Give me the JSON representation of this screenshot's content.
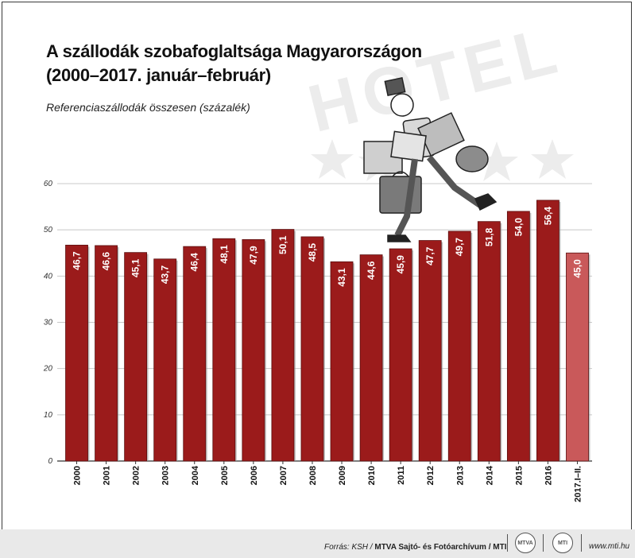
{
  "header": {
    "title_line1": "A szállodák szobafoglaltsága Magyarországon",
    "title_line2": "(2000–2017. január–február)",
    "subtitle": "Referenciaszállodák összesen (százalék)"
  },
  "watermark": {
    "text": "HOTEL"
  },
  "footer": {
    "source_prefix": "Forrás: KSH / ",
    "source_agency": "MTVA Sajtó- és Fotóarchívum / MTI",
    "logo1": "MTVA",
    "logo2": "MTI",
    "website": "www.mti.hu"
  },
  "colors": {
    "bar": "#9b1b1b",
    "bar_highlight": "#c9595a",
    "grid": "#c8c8c8"
  },
  "chart_data": {
    "type": "bar",
    "title": "A szállodák szobafoglaltsága Magyarországon (2000–2017. január–február)",
    "subtitle": "Referenciaszállodák összesen (százalék)",
    "categories": [
      "2000",
      "2001",
      "2002",
      "2003",
      "2004",
      "2005",
      "2006",
      "2007",
      "2008",
      "2009",
      "2010",
      "2011",
      "2012",
      "2013",
      "2014",
      "2015",
      "2016",
      "2017.I–II."
    ],
    "values": [
      46.7,
      46.6,
      45.1,
      43.7,
      46.4,
      48.1,
      47.9,
      50.1,
      48.5,
      43.1,
      44.6,
      45.9,
      47.7,
      49.7,
      51.8,
      54.0,
      56.4,
      45.0
    ],
    "value_labels": [
      "46,7",
      "46,6",
      "45,1",
      "43,7",
      "46,4",
      "48,1",
      "47,9",
      "50,1",
      "48,5",
      "43,1",
      "44,6",
      "45,9",
      "47,7",
      "49,7",
      "51,8",
      "54,0",
      "56,4",
      "45,0"
    ],
    "yticks": [
      0,
      10,
      20,
      30,
      40,
      50,
      60
    ],
    "ylim": [
      0,
      60
    ],
    "xlabel": "",
    "ylabel": "",
    "grid": true,
    "highlight_last": true
  }
}
